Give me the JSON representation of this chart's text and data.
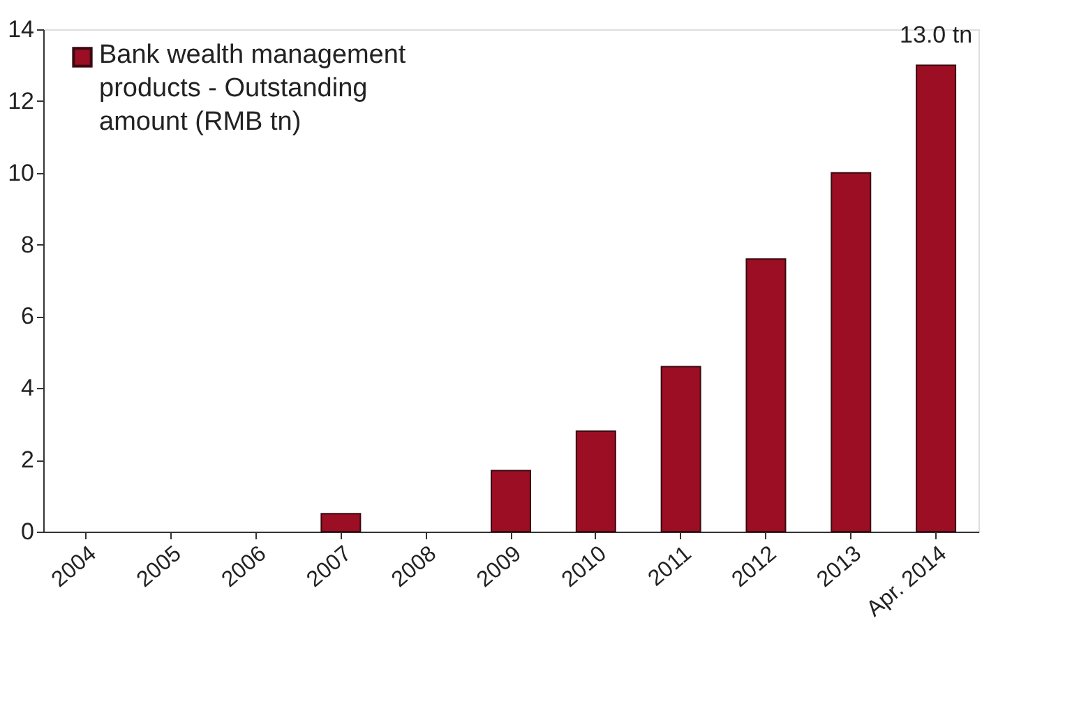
{
  "chart_data": {
    "type": "bar",
    "categories": [
      "2004",
      "2005",
      "2006",
      "2007",
      "2008",
      "2009",
      "2010",
      "2011",
      "2012",
      "2013",
      "Apr. 2014"
    ],
    "series": [
      {
        "name": "Bank wealth management products - Outstanding amount (RMB tn)",
        "color": "#9b0e24",
        "values": [
          null,
          null,
          null,
          0.5,
          null,
          1.7,
          2.8,
          4.6,
          7.6,
          10.0,
          13.0
        ],
        "value_labels": [
          null,
          null,
          null,
          null,
          null,
          null,
          null,
          null,
          null,
          null,
          "13.0 tn"
        ]
      }
    ],
    "ylim": [
      0,
      14
    ],
    "yticks": [
      0,
      2,
      4,
      6,
      8,
      10,
      12,
      14
    ],
    "grid": false,
    "legend": "top left"
  }
}
